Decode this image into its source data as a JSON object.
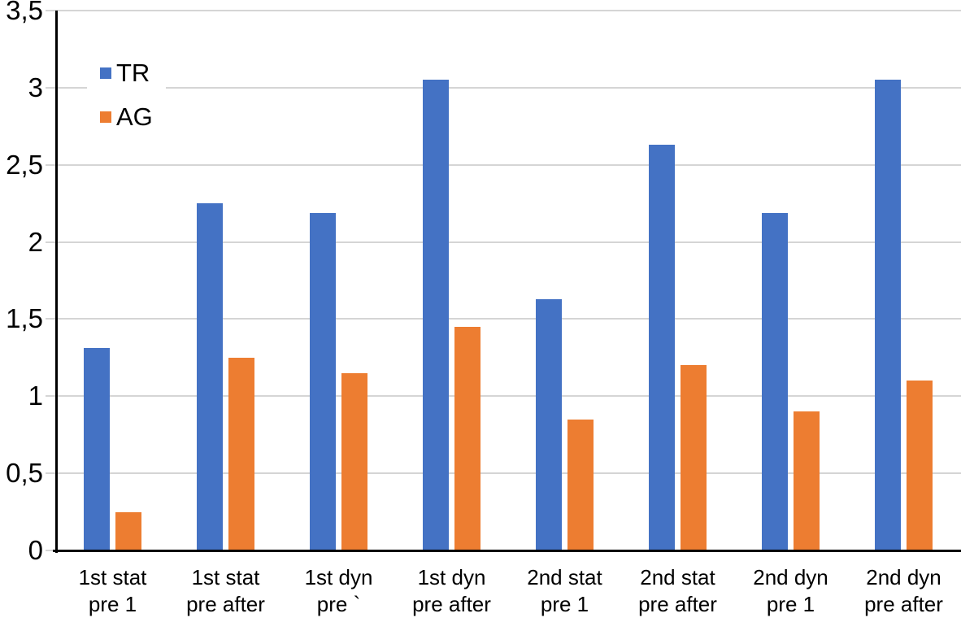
{
  "chart_data": {
    "type": "bar",
    "title": "",
    "xlabel": "",
    "ylabel": "",
    "categories": [
      [
        "1st stat",
        "pre 1"
      ],
      [
        "1st stat",
        "pre after"
      ],
      [
        "1st dyn",
        "pre `"
      ],
      [
        "1st dyn",
        "pre after"
      ],
      [
        "2nd stat",
        "pre 1"
      ],
      [
        "2nd stat",
        "pre after"
      ],
      [
        "2nd dyn",
        "pre 1"
      ],
      [
        "2nd dyn",
        "pre after"
      ]
    ],
    "series": [
      {
        "name": "TR",
        "color": "#4472C4",
        "values": [
          1.31,
          2.25,
          2.19,
          3.05,
          1.63,
          2.63,
          2.19,
          3.05
        ]
      },
      {
        "name": "AG",
        "color": "#ED7D31",
        "values": [
          0.25,
          1.25,
          1.15,
          1.45,
          0.85,
          1.2,
          0.9,
          1.1
        ]
      }
    ],
    "ylim": [
      0,
      3.5
    ],
    "ytick_values": [
      0,
      0.5,
      1,
      1.5,
      2,
      2.5,
      3,
      3.5
    ],
    "ytick_labels": [
      "0",
      "0,5",
      "1",
      "1,5",
      "2",
      "2,5",
      "3",
      "3,5"
    ],
    "decimal_separator": ",",
    "grid": true,
    "legend_position": "top-left"
  },
  "colors": {
    "background": "#FFFFFF",
    "gridline": "#D5D5D5",
    "axis": "#000000",
    "text": "#000000",
    "series_tr": "#4472C4",
    "series_ag": "#ED7D31"
  }
}
